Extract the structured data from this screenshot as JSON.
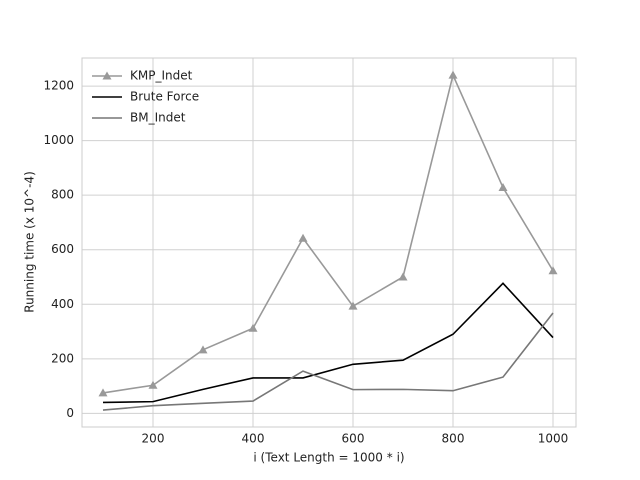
{
  "chart_data": {
    "type": "line",
    "x_label": "i (Text Length = 1000 * i)",
    "y_label": "Running time (x 10^-4)",
    "x": [
      100,
      200,
      300,
      400,
      500,
      600,
      700,
      800,
      900,
      1000
    ],
    "series": [
      {
        "name": "KMP_Indet",
        "color": "#999999",
        "marker": "triangle",
        "values": [
          75,
          103,
          233,
          312,
          642,
          393,
          500,
          1240,
          828,
          523
        ]
      },
      {
        "name": "Brute Force",
        "color": "#000000",
        "values": [
          40,
          43,
          88,
          130,
          130,
          180,
          195,
          290,
          477,
          278
        ]
      },
      {
        "name": "BM_Indet",
        "color": "#777777",
        "values": [
          12,
          28,
          37,
          45,
          155,
          87,
          88,
          83,
          133,
          368
        ]
      }
    ],
    "xlim": [
      58,
      1046
    ],
    "xticks": [
      200,
      400,
      600,
      800,
      1000
    ],
    "ylim": [
      -50,
      1303
    ],
    "yticks": [
      0,
      200,
      400,
      600,
      800,
      1000,
      1200
    ],
    "grid": true,
    "legend": "upper left"
  }
}
